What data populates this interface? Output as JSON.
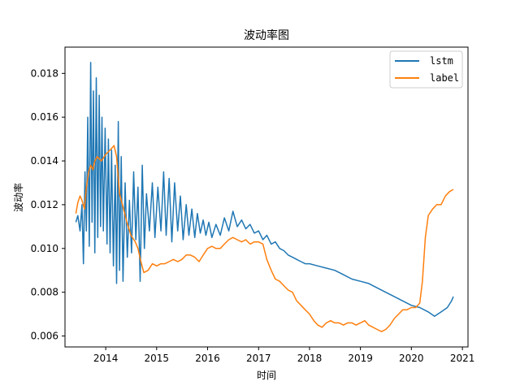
{
  "chart_data": {
    "type": "line",
    "title": "波动率图",
    "xlabel": "时间",
    "ylabel": "波动率",
    "xlim": [
      "2013-03-15",
      "2021-02-10"
    ],
    "ylim": [
      0.0055,
      0.0192
    ],
    "x_ticks": [
      "2014",
      "2015",
      "2016",
      "2017",
      "2018",
      "2019",
      "2020",
      "2021"
    ],
    "y_ticks": [
      "0.006",
      "0.008",
      "0.010",
      "0.012",
      "0.014",
      "0.016",
      "0.018"
    ],
    "grid": false,
    "legend": "top-right",
    "series": [
      {
        "name": "lstm",
        "color": "#1f77b4",
        "points": [
          [
            "2013-06-01",
            0.0112
          ],
          [
            "2013-06-15",
            0.0115
          ],
          [
            "2013-07-01",
            0.0108
          ],
          [
            "2013-07-15",
            0.012
          ],
          [
            "2013-07-25",
            0.0093
          ],
          [
            "2013-08-05",
            0.0135
          ],
          [
            "2013-08-15",
            0.0108
          ],
          [
            "2013-08-25",
            0.016
          ],
          [
            "2013-09-05",
            0.0101
          ],
          [
            "2013-09-15",
            0.0185
          ],
          [
            "2013-09-25",
            0.0112
          ],
          [
            "2013-10-05",
            0.0172
          ],
          [
            "2013-10-15",
            0.0098
          ],
          [
            "2013-10-25",
            0.0178
          ],
          [
            "2013-11-05",
            0.0105
          ],
          [
            "2013-11-15",
            0.017
          ],
          [
            "2013-11-25",
            0.011
          ],
          [
            "2013-12-05",
            0.016
          ],
          [
            "2013-12-15",
            0.0108
          ],
          [
            "2013-12-28",
            0.0155
          ],
          [
            "2014-01-10",
            0.0102
          ],
          [
            "2014-01-20",
            0.015
          ],
          [
            "2014-02-01",
            0.0098
          ],
          [
            "2014-02-12",
            0.0145
          ],
          [
            "2014-02-25",
            0.0092
          ],
          [
            "2014-03-10",
            0.0138
          ],
          [
            "2014-03-20",
            0.0084
          ],
          [
            "2014-04-01",
            0.0158
          ],
          [
            "2014-04-10",
            0.009
          ],
          [
            "2014-04-22",
            0.0142
          ],
          [
            "2014-05-05",
            0.0085
          ],
          [
            "2014-05-20",
            0.013
          ],
          [
            "2014-06-05",
            0.0096
          ],
          [
            "2014-06-20",
            0.0122
          ],
          [
            "2014-07-05",
            0.0098
          ],
          [
            "2014-07-20",
            0.0135
          ],
          [
            "2014-08-05",
            0.0104
          ],
          [
            "2014-08-20",
            0.0128
          ],
          [
            "2014-09-05",
            0.0085
          ],
          [
            "2014-09-20",
            0.0138
          ],
          [
            "2014-10-05",
            0.01
          ],
          [
            "2014-10-20",
            0.0125
          ],
          [
            "2014-11-10",
            0.0108
          ],
          [
            "2014-12-01",
            0.013
          ],
          [
            "2014-12-20",
            0.0105
          ],
          [
            "2015-01-10",
            0.0128
          ],
          [
            "2015-02-01",
            0.0108
          ],
          [
            "2015-02-20",
            0.0135
          ],
          [
            "2015-03-10",
            0.0106
          ],
          [
            "2015-04-01",
            0.0132
          ],
          [
            "2015-04-20",
            0.0103
          ],
          [
            "2015-05-10",
            0.013
          ],
          [
            "2015-06-01",
            0.0108
          ],
          [
            "2015-06-20",
            0.0124
          ],
          [
            "2015-07-10",
            0.0104
          ],
          [
            "2015-08-01",
            0.012
          ],
          [
            "2015-08-20",
            0.0106
          ],
          [
            "2015-09-10",
            0.0118
          ],
          [
            "2015-10-01",
            0.0105
          ],
          [
            "2015-10-20",
            0.0116
          ],
          [
            "2015-11-10",
            0.0107
          ],
          [
            "2015-12-01",
            0.0113
          ],
          [
            "2015-12-20",
            0.0106
          ],
          [
            "2016-01-10",
            0.0112
          ],
          [
            "2016-02-01",
            0.0105
          ],
          [
            "2016-03-01",
            0.0111
          ],
          [
            "2016-04-01",
            0.0106
          ],
          [
            "2016-05-01",
            0.0114
          ],
          [
            "2016-06-01",
            0.0108
          ],
          [
            "2016-07-01",
            0.0117
          ],
          [
            "2016-08-01",
            0.011
          ],
          [
            "2016-09-01",
            0.0113
          ],
          [
            "2016-10-01",
            0.0109
          ],
          [
            "2016-11-01",
            0.0111
          ],
          [
            "2016-12-01",
            0.0107
          ],
          [
            "2017-01-01",
            0.0108
          ],
          [
            "2017-02-01",
            0.0104
          ],
          [
            "2017-03-01",
            0.0106
          ],
          [
            "2017-04-01",
            0.0102
          ],
          [
            "2017-05-01",
            0.0103
          ],
          [
            "2017-06-01",
            0.01
          ],
          [
            "2017-07-01",
            0.0099
          ],
          [
            "2017-08-01",
            0.0097
          ],
          [
            "2017-09-01",
            0.0096
          ],
          [
            "2017-10-01",
            0.0095
          ],
          [
            "2017-11-01",
            0.0094
          ],
          [
            "2017-12-01",
            0.0093
          ],
          [
            "2018-01-01",
            0.0093
          ],
          [
            "2018-03-01",
            0.0092
          ],
          [
            "2018-05-01",
            0.0091
          ],
          [
            "2018-07-01",
            0.009
          ],
          [
            "2018-09-01",
            0.0088
          ],
          [
            "2018-11-01",
            0.0086
          ],
          [
            "2019-01-01",
            0.0085
          ],
          [
            "2019-03-01",
            0.0084
          ],
          [
            "2019-05-01",
            0.0082
          ],
          [
            "2019-07-01",
            0.008
          ],
          [
            "2019-09-01",
            0.0078
          ],
          [
            "2019-11-01",
            0.0076
          ],
          [
            "2020-01-01",
            0.0074
          ],
          [
            "2020-03-01",
            0.0073
          ],
          [
            "2020-05-01",
            0.0071
          ],
          [
            "2020-06-15",
            0.0069
          ],
          [
            "2020-08-01",
            0.0071
          ],
          [
            "2020-09-15",
            0.0073
          ],
          [
            "2020-10-15",
            0.0076
          ],
          [
            "2020-10-28",
            0.0078
          ]
        ]
      },
      {
        "name": "label",
        "color": "#ff7f0e",
        "points": [
          [
            "2013-06-01",
            0.0116
          ],
          [
            "2013-06-15",
            0.0121
          ],
          [
            "2013-07-01",
            0.0124
          ],
          [
            "2013-07-15",
            0.0122
          ],
          [
            "2013-08-01",
            0.0118
          ],
          [
            "2013-08-15",
            0.0128
          ],
          [
            "2013-09-01",
            0.0135
          ],
          [
            "2013-09-15",
            0.0138
          ],
          [
            "2013-10-01",
            0.0136
          ],
          [
            "2013-10-15",
            0.014
          ],
          [
            "2013-11-01",
            0.0142
          ],
          [
            "2013-12-01",
            0.014
          ],
          [
            "2014-01-01",
            0.0143
          ],
          [
            "2014-02-01",
            0.0145
          ],
          [
            "2014-03-01",
            0.0147
          ],
          [
            "2014-03-20",
            0.0142
          ],
          [
            "2014-04-10",
            0.0125
          ],
          [
            "2014-05-01",
            0.012
          ],
          [
            "2014-06-01",
            0.0112
          ],
          [
            "2014-07-01",
            0.0106
          ],
          [
            "2014-08-01",
            0.0103
          ],
          [
            "2014-08-20",
            0.01
          ],
          [
            "2014-09-10",
            0.0094
          ],
          [
            "2014-10-01",
            0.0089
          ],
          [
            "2014-11-01",
            0.009
          ],
          [
            "2014-12-01",
            0.0093
          ],
          [
            "2015-01-01",
            0.0092
          ],
          [
            "2015-02-01",
            0.0093
          ],
          [
            "2015-03-01",
            0.0093
          ],
          [
            "2015-04-01",
            0.0094
          ],
          [
            "2015-05-01",
            0.0095
          ],
          [
            "2015-06-01",
            0.0094
          ],
          [
            "2015-07-01",
            0.0095
          ],
          [
            "2015-08-01",
            0.0097
          ],
          [
            "2015-09-01",
            0.0097
          ],
          [
            "2015-10-01",
            0.0096
          ],
          [
            "2015-11-01",
            0.0094
          ],
          [
            "2015-12-01",
            0.0097
          ],
          [
            "2016-01-01",
            0.01
          ],
          [
            "2016-02-01",
            0.0101
          ],
          [
            "2016-03-01",
            0.01
          ],
          [
            "2016-04-01",
            0.01
          ],
          [
            "2016-05-01",
            0.0102
          ],
          [
            "2016-06-01",
            0.0104
          ],
          [
            "2016-07-01",
            0.0105
          ],
          [
            "2016-08-01",
            0.0104
          ],
          [
            "2016-09-01",
            0.0103
          ],
          [
            "2016-10-01",
            0.0104
          ],
          [
            "2016-11-01",
            0.0102
          ],
          [
            "2016-12-01",
            0.0103
          ],
          [
            "2017-01-01",
            0.0103
          ],
          [
            "2017-02-01",
            0.0102
          ],
          [
            "2017-03-01",
            0.0095
          ],
          [
            "2017-04-01",
            0.009
          ],
          [
            "2017-05-01",
            0.0086
          ],
          [
            "2017-06-01",
            0.0085
          ],
          [
            "2017-07-01",
            0.0083
          ],
          [
            "2017-08-01",
            0.0081
          ],
          [
            "2017-09-01",
            0.008
          ],
          [
            "2017-10-01",
            0.0076
          ],
          [
            "2017-11-01",
            0.0074
          ],
          [
            "2017-12-01",
            0.0072
          ],
          [
            "2018-01-01",
            0.007
          ],
          [
            "2018-02-01",
            0.0067
          ],
          [
            "2018-03-01",
            0.0065
          ],
          [
            "2018-04-01",
            0.0064
          ],
          [
            "2018-05-01",
            0.0066
          ],
          [
            "2018-06-01",
            0.0067
          ],
          [
            "2018-07-01",
            0.0066
          ],
          [
            "2018-08-01",
            0.0066
          ],
          [
            "2018-09-01",
            0.0065
          ],
          [
            "2018-10-01",
            0.0066
          ],
          [
            "2018-11-01",
            0.0066
          ],
          [
            "2018-12-01",
            0.0065
          ],
          [
            "2019-01-01",
            0.0066
          ],
          [
            "2019-02-01",
            0.0067
          ],
          [
            "2019-03-01",
            0.0065
          ],
          [
            "2019-04-01",
            0.0064
          ],
          [
            "2019-05-01",
            0.0063
          ],
          [
            "2019-06-01",
            0.0062
          ],
          [
            "2019-07-01",
            0.0063
          ],
          [
            "2019-08-01",
            0.0065
          ],
          [
            "2019-09-01",
            0.0068
          ],
          [
            "2019-10-01",
            0.007
          ],
          [
            "2019-11-01",
            0.0072
          ],
          [
            "2019-12-01",
            0.0072
          ],
          [
            "2020-01-01",
            0.0073
          ],
          [
            "2020-02-01",
            0.0073
          ],
          [
            "2020-03-01",
            0.0075
          ],
          [
            "2020-03-20",
            0.0085
          ],
          [
            "2020-04-10",
            0.0105
          ],
          [
            "2020-05-01",
            0.0115
          ],
          [
            "2020-06-01",
            0.0118
          ],
          [
            "2020-07-01",
            0.012
          ],
          [
            "2020-08-01",
            0.012
          ],
          [
            "2020-09-01",
            0.0124
          ],
          [
            "2020-10-01",
            0.0126
          ],
          [
            "2020-10-28",
            0.0127
          ]
        ]
      }
    ]
  }
}
